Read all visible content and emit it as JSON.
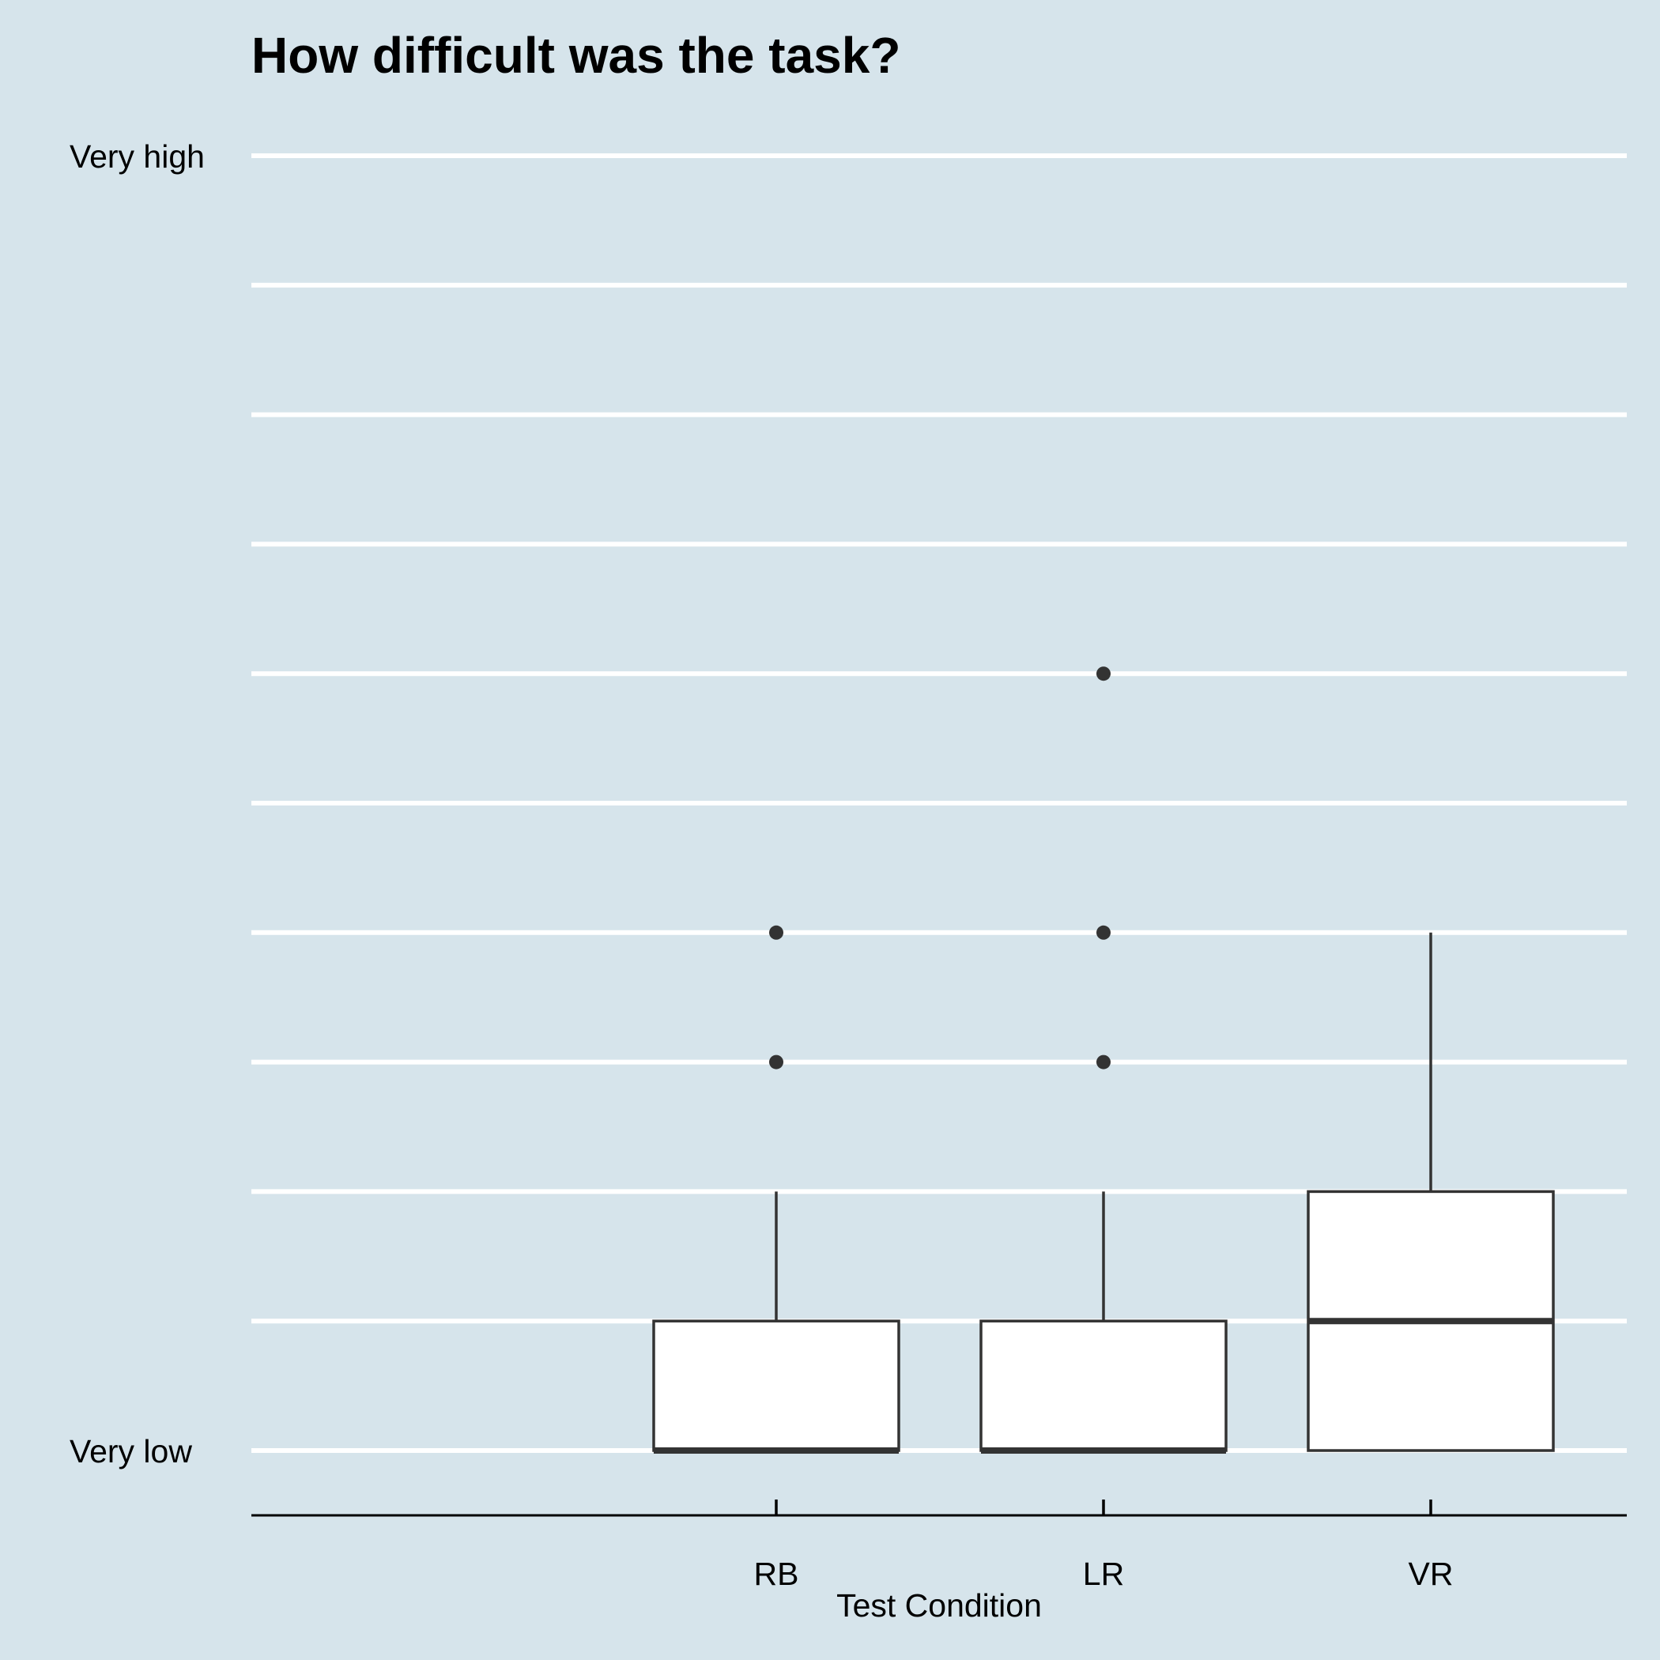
{
  "chart_data": {
    "type": "boxplot",
    "title": "How difficult was the task?",
    "xlabel": "Test Condition",
    "ylabel": "",
    "categories": [
      "RB",
      "LR",
      "VR"
    ],
    "y_tick_labels": {
      "min": "Very low",
      "max": "Very high"
    },
    "ylim": [
      1,
      11
    ],
    "grid_levels": [
      1,
      2,
      3,
      4,
      5,
      6,
      7,
      8,
      9,
      10,
      11
    ],
    "boxes": [
      {
        "category": "RB",
        "min": 1,
        "q1": 1,
        "median": 1,
        "q3": 2,
        "max": 3,
        "outliers": [
          4,
          5
        ]
      },
      {
        "category": "LR",
        "min": 1,
        "q1": 1,
        "median": 1,
        "q3": 2,
        "max": 3,
        "outliers": [
          4,
          5,
          7
        ]
      },
      {
        "category": "VR",
        "min": 1,
        "q1": 1,
        "median": 2,
        "q3": 3,
        "max": 5,
        "outliers": []
      }
    ],
    "grid": true,
    "legend": "none",
    "colors": {
      "background": "#d6e4eb",
      "grid": "#ffffff",
      "box_fill": "#ffffff",
      "box_stroke": "#333333"
    }
  }
}
